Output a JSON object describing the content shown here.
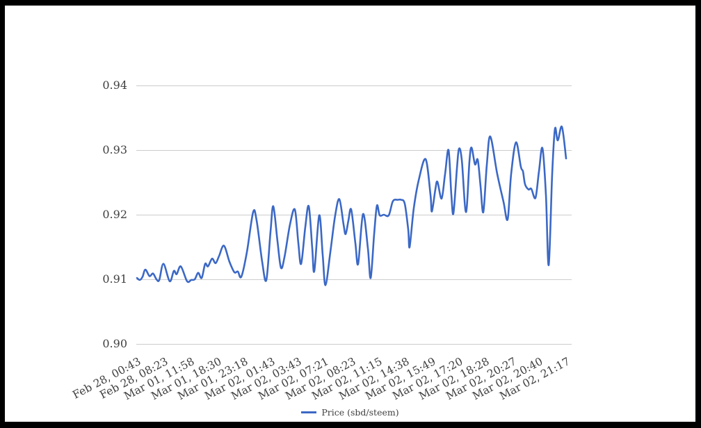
{
  "chart_data": {
    "type": "line",
    "title": "",
    "xlabel": "",
    "ylabel": "",
    "ylim": [
      0.9,
      0.94
    ],
    "y_ticks": [
      0.9,
      0.91,
      0.92,
      0.93,
      0.94
    ],
    "grid": true,
    "legend_position": "bottom",
    "colors": {
      "line": "#3b68c5",
      "gridline": "#cccccc",
      "axis_text": "#3f3f3f",
      "background": "#ffffff",
      "frame": "#000000"
    },
    "x_tick_labels": [
      "Feb 28, 00:43",
      "Feb 28, 08:23",
      "Mar 01, 11:58",
      "Mar 01, 18:30",
      "Mar 01, 23:18",
      "Mar 02, 01:43",
      "Mar 02, 03:43",
      "Mar 02, 07:21",
      "Mar 02, 08:23",
      "Mar 02, 11:15",
      "Mar 02, 14:38",
      "Mar 02, 15:49",
      "Mar 02, 17:20",
      "Mar 02, 18:28",
      "Mar 02, 20:27",
      "Mar 02, 20:40",
      "Mar 02, 21:17"
    ],
    "series": [
      {
        "name": "Price (sbd/steem)",
        "color": "#3b68c5",
        "points": [
          [
            0,
            0.9102
          ],
          [
            4,
            0.9099
          ],
          [
            8,
            0.9104
          ],
          [
            12,
            0.9115
          ],
          [
            18,
            0.9105
          ],
          [
            23,
            0.9109
          ],
          [
            28,
            0.91
          ],
          [
            32,
            0.9099
          ],
          [
            38,
            0.9124
          ],
          [
            47,
            0.9097
          ],
          [
            53,
            0.9113
          ],
          [
            57,
            0.9108
          ],
          [
            63,
            0.912
          ],
          [
            72,
            0.9097
          ],
          [
            78,
            0.9099
          ],
          [
            83,
            0.91
          ],
          [
            88,
            0.911
          ],
          [
            93,
            0.9102
          ],
          [
            98,
            0.9124
          ],
          [
            102,
            0.912
          ],
          [
            108,
            0.9132
          ],
          [
            113,
            0.9125
          ],
          [
            118,
            0.9136
          ],
          [
            125,
            0.9152
          ],
          [
            133,
            0.9127
          ],
          [
            140,
            0.9111
          ],
          [
            145,
            0.9112
          ],
          [
            150,
            0.9104
          ],
          [
            158,
            0.9142
          ],
          [
            167,
            0.9204
          ],
          [
            172,
            0.9191
          ],
          [
            180,
            0.9127
          ],
          [
            186,
            0.9099
          ],
          [
            192,
            0.9174
          ],
          [
            196,
            0.9213
          ],
          [
            202,
            0.9159
          ],
          [
            207,
            0.9118
          ],
          [
            212,
            0.9134
          ],
          [
            220,
            0.9185
          ],
          [
            227,
            0.9208
          ],
          [
            232,
            0.9156
          ],
          [
            236,
            0.9124
          ],
          [
            242,
            0.9181
          ],
          [
            247,
            0.9213
          ],
          [
            252,
            0.9148
          ],
          [
            255,
            0.9113
          ],
          [
            262,
            0.9199
          ],
          [
            267,
            0.9138
          ],
          [
            271,
            0.9091
          ],
          [
            278,
            0.9142
          ],
          [
            285,
            0.9199
          ],
          [
            291,
            0.9224
          ],
          [
            297,
            0.9185
          ],
          [
            300,
            0.917
          ],
          [
            304,
            0.9191
          ],
          [
            308,
            0.9208
          ],
          [
            314,
            0.9156
          ],
          [
            318,
            0.9124
          ],
          [
            325,
            0.9201
          ],
          [
            332,
            0.9148
          ],
          [
            336,
            0.9102
          ],
          [
            341,
            0.917
          ],
          [
            345,
            0.9214
          ],
          [
            349,
            0.9199
          ],
          [
            355,
            0.92
          ],
          [
            362,
            0.9199
          ],
          [
            368,
            0.9221
          ],
          [
            375,
            0.9223
          ],
          [
            380,
            0.9223
          ],
          [
            385,
            0.9217
          ],
          [
            390,
            0.9177
          ],
          [
            392,
            0.915
          ],
          [
            398,
            0.921
          ],
          [
            405,
            0.9253
          ],
          [
            415,
            0.9286
          ],
          [
            422,
            0.9231
          ],
          [
            424,
            0.9205
          ],
          [
            429,
            0.9239
          ],
          [
            432,
            0.9251
          ],
          [
            438,
            0.9225
          ],
          [
            443,
            0.9263
          ],
          [
            448,
            0.93
          ],
          [
            452,
            0.9231
          ],
          [
            455,
            0.9202
          ],
          [
            460,
            0.9271
          ],
          [
            463,
            0.9302
          ],
          [
            467,
            0.9285
          ],
          [
            473,
            0.9204
          ],
          [
            478,
            0.9282
          ],
          [
            481,
            0.9304
          ],
          [
            486,
            0.9278
          ],
          [
            490,
            0.9285
          ],
          [
            494,
            0.9244
          ],
          [
            498,
            0.9204
          ],
          [
            503,
            0.9277
          ],
          [
            508,
            0.9321
          ],
          [
            518,
            0.9263
          ],
          [
            527,
            0.922
          ],
          [
            533,
            0.9193
          ],
          [
            538,
            0.9263
          ],
          [
            545,
            0.9312
          ],
          [
            552,
            0.9274
          ],
          [
            555,
            0.9267
          ],
          [
            558,
            0.9247
          ],
          [
            563,
            0.9239
          ],
          [
            567,
            0.924
          ],
          [
            573,
            0.9226
          ],
          [
            578,
            0.9267
          ],
          [
            583,
            0.9303
          ],
          [
            588,
            0.9231
          ],
          [
            592,
            0.9122
          ],
          [
            597,
            0.9263
          ],
          [
            601,
            0.9333
          ],
          [
            605,
            0.9315
          ],
          [
            611,
            0.9336
          ],
          [
            617,
            0.9287
          ]
        ]
      }
    ]
  }
}
